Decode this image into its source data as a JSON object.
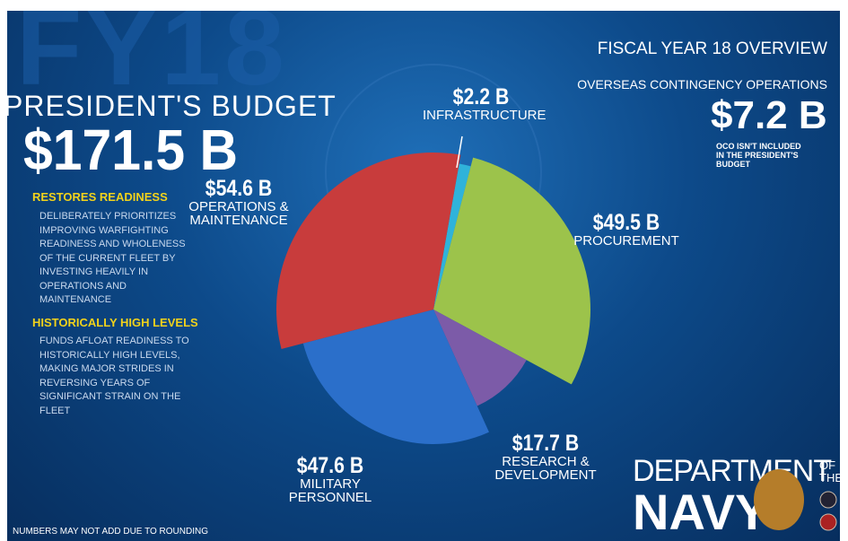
{
  "chart_data": {
    "type": "pie",
    "categories": [
      "INFRASTRUCTURE",
      "PROCUREMENT",
      "RESEARCH & DEVELOPMENT",
      "MILITARY PERSONNEL",
      "OPERATIONS & MAINTENANCE"
    ],
    "values": [
      2.2,
      49.5,
      17.7,
      47.6,
      54.6
    ],
    "value_labels": [
      "$2.2 B",
      "$49.5 B",
      "$17.7 B",
      "$47.6 B",
      "$54.6 B"
    ],
    "colors": [
      "#2fb3da",
      "#9cc34b",
      "#7c5ba8",
      "#2b6fca",
      "#c83c3c"
    ]
  },
  "header": {
    "watermark": "FY18",
    "title": "PRESIDENT'S BUDGET",
    "total": "$171.5 B",
    "overview": "FISCAL YEAR 18 OVERVIEW"
  },
  "oco": {
    "title": "OVERSEAS CONTINGENCY OPERATIONS",
    "amount": "$7.2 B",
    "note": "OCO ISN'T INCLUDED IN THE PRESIDENT'S BUDGET"
  },
  "points": [
    {
      "heading": "RESTORES READINESS",
      "text": "DELIBERATELY PRIORITIZES IMPROVING WARFIGHTING READINESS AND WHOLENESS OF THE CURRENT FLEET BY INVESTING HEAVILY IN OPERATIONS AND MAINTENANCE"
    },
    {
      "heading": "HISTORICALLY HIGH LEVELS",
      "text": "FUNDS AFLOAT READINESS TO HISTORICALLY HIGH LEVELS, MAKING MAJOR STRIDES IN REVERSING YEARS OF SIGNIFICANT STRAIN ON THE FLEET"
    }
  ],
  "footnote": "NUMBERS MAY NOT ADD DUE TO ROUNDING",
  "logo": {
    "department": "DEPARTMENT",
    "of_the": "OF THE",
    "navy": "NAVY"
  }
}
